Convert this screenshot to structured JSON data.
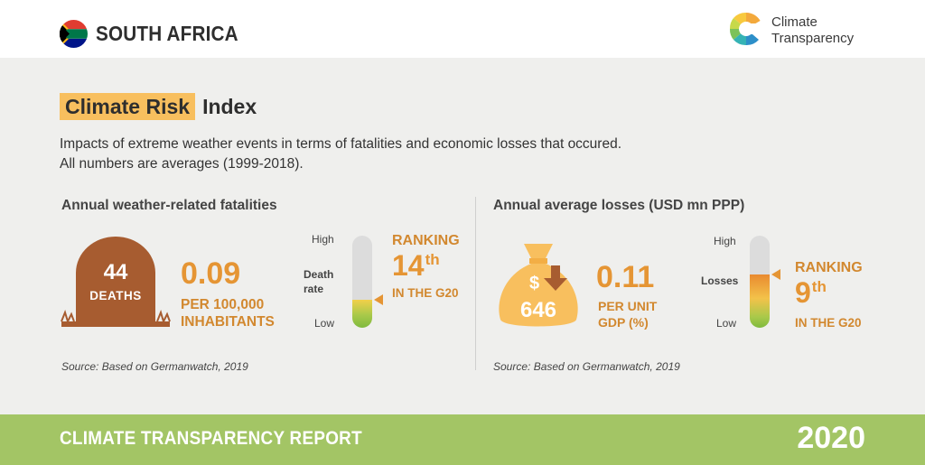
{
  "header": {
    "country": "SOUTH AFRICA",
    "brand_line1": "Climate",
    "brand_line2": "Transparency",
    "flag_icon": "south-africa-flag-icon",
    "logo_icon": "climate-transparency-logo-icon"
  },
  "title": {
    "highlight": "Climate Risk",
    "rest": "Index"
  },
  "description": {
    "line1": "Impacts of extreme weather events in terms of fatalities and economic losses that occured.",
    "line2": "All numbers are averages (1999-2018)."
  },
  "fatalities": {
    "heading": "Annual weather-related fatalities",
    "deaths_value": "44",
    "deaths_label": "DEATHS",
    "rate_value": "0.09",
    "rate_unit_line1": "PER 100,000",
    "rate_unit_line2": "INHABITANTS",
    "gauge": {
      "high": "High",
      "low": "Low",
      "label_line1": "Death",
      "label_line2": "rate",
      "level": 0.3
    },
    "ranking_label": "RANKING",
    "ranking_num": "14",
    "ranking_suffix": "th",
    "ranking_sub": "IN THE G20",
    "source": "Source: Based on Germanwatch, 2019",
    "icon": "tombstone-icon"
  },
  "losses": {
    "heading": "Annual average losses (USD mn PPP)",
    "bag_value": "646",
    "bag_symbol": "$",
    "rate_value": "0.11",
    "rate_unit_line1": "PER UNIT",
    "rate_unit_line2": "GDP (%)",
    "gauge": {
      "high": "High",
      "low": "Low",
      "label": "Losses",
      "level": 0.58
    },
    "ranking_label": "RANKING",
    "ranking_num": "9",
    "ranking_suffix": "th",
    "ranking_sub": "IN THE G20",
    "source": "Source: Based on Germanwatch, 2019",
    "icon": "money-bag-down-arrow-icon"
  },
  "footer": {
    "left": "CLIMATE TRANSPARENCY REPORT",
    "right": "2020"
  },
  "colors": {
    "accent_orange": "#e59534",
    "highlight_yellow": "#f8bf5e",
    "footer_green": "#a3c565",
    "stone_brown": "#a75c30"
  }
}
